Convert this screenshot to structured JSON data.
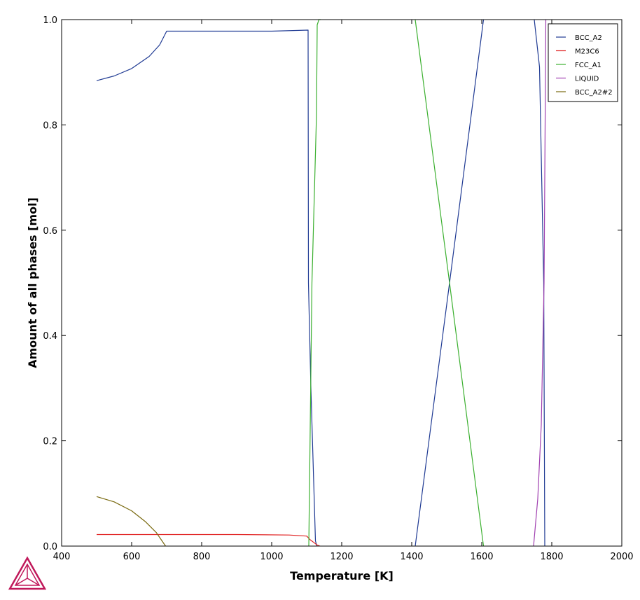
{
  "chart_data": {
    "type": "line",
    "title": "",
    "xlabel": "Temperature [K]",
    "ylabel": "Amount of all phases [mol]",
    "xlim": [
      400,
      2000
    ],
    "ylim": [
      0,
      1.0
    ],
    "xticks": [
      "400",
      "600",
      "800",
      "1000",
      "1200",
      "1400",
      "1600",
      "1800",
      "2000"
    ],
    "yticks": [
      "0.0",
      "0.2",
      "0.4",
      "0.6",
      "0.8",
      "1.0"
    ],
    "grid": false,
    "legend_position": "top-right",
    "series": [
      {
        "name": "BCC_A2",
        "color": "#1f3a93",
        "segments": [
          [
            [
              500,
              0.884
            ],
            [
              550,
              0.893
            ],
            [
              600,
              0.907
            ],
            [
              650,
              0.93
            ],
            [
              680,
              0.952
            ],
            [
              700,
              0.978
            ],
            [
              800,
              0.978
            ],
            [
              900,
              0.978
            ],
            [
              1000,
              0.978
            ],
            [
              1104,
              0.98
            ],
            [
              1105,
              0.5
            ],
            [
              1112,
              0.3
            ],
            [
              1125,
              0.01
            ],
            [
              1129,
              0.0
            ]
          ],
          [
            [
              1410,
              0.0
            ],
            [
              1508,
              0.5
            ],
            [
              1605,
              1.0
            ]
          ],
          [
            [
              1750,
              1.0
            ],
            [
              1765,
              0.91
            ],
            [
              1777,
              0.5
            ],
            [
              1780,
              0.0
            ]
          ]
        ]
      },
      {
        "name": "M23C6",
        "color": "#e02020",
        "segments": [
          [
            [
              500,
              0.022
            ],
            [
              700,
              0.022
            ],
            [
              900,
              0.022
            ],
            [
              1050,
              0.021
            ],
            [
              1100,
              0.019
            ],
            [
              1110,
              0.012
            ],
            [
              1120,
              0.007
            ],
            [
              1130,
              0.002
            ],
            [
              1138,
              0.0
            ]
          ]
        ]
      },
      {
        "name": "FCC_A1",
        "color": "#3cb030",
        "segments": [
          [
            [
              1106,
              0.0
            ],
            [
              1115,
              0.5
            ],
            [
              1128,
              0.82
            ],
            [
              1130,
              0.99
            ],
            [
              1135,
              1.0
            ],
            [
              1140,
              1.0
            ]
          ],
          [
            [
              1410,
              1.0
            ],
            [
              1508,
              0.5
            ],
            [
              1605,
              0.0
            ]
          ]
        ]
      },
      {
        "name": "LIQUID",
        "color": "#a040b0",
        "segments": [
          [
            [
              1748,
              0.0
            ],
            [
              1760,
              0.09
            ],
            [
              1770,
              0.23
            ],
            [
              1778,
              0.5
            ],
            [
              1783,
              1.0
            ]
          ]
        ]
      },
      {
        "name": "BCC_A2#2",
        "color": "#7a6a10",
        "segments": [
          [
            [
              500,
              0.094
            ],
            [
              550,
              0.084
            ],
            [
              600,
              0.067
            ],
            [
              640,
              0.046
            ],
            [
              670,
              0.026
            ],
            [
              697,
              0.0
            ]
          ]
        ]
      }
    ]
  },
  "logo": {
    "name": "thermo-calc-logo",
    "color": "#c0185a"
  }
}
